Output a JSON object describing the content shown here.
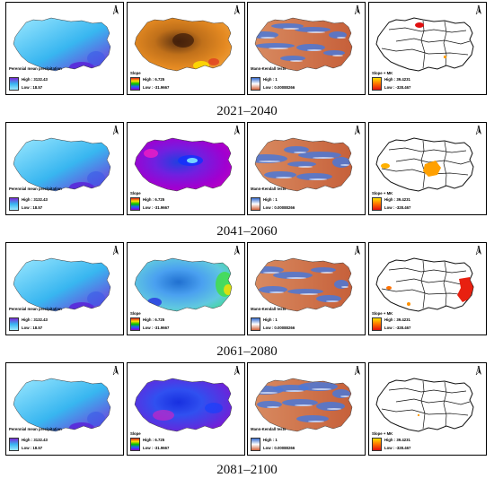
{
  "periods": [
    "2021–2040",
    "2041–2060",
    "2061–2080",
    "2081–2100"
  ],
  "north_label": "N",
  "legends": {
    "precip": {
      "title": "Perennial mean precipitation",
      "high": "High : 3132.43",
      "low": "Low : 18.57"
    },
    "slope": {
      "title": "Slope",
      "high": "High : 6.725",
      "low": "Low : -31.9667"
    },
    "mk": {
      "title": "Mann-Kendall tests",
      "high": "High : 1",
      "low": "Low : 0.00088266"
    },
    "slopemk": {
      "title": "Slope + MK",
      "high": "High : 39.4231",
      "low": "Low : -328.467"
    }
  },
  "colors": {
    "precip_ramp": [
      "#7a2bd6",
      "#38b6f0",
      "#9ce8ff"
    ],
    "slope_ramp": [
      "#e0231f",
      "#ffe000",
      "#00c000",
      "#2060ff",
      "#9000d0"
    ],
    "mk_ramp": [
      "#3a6fd0",
      "#ffffff",
      "#d2643c"
    ],
    "slopemk_ramp": [
      "#ffe000",
      "#ff7000",
      "#e01010"
    ]
  }
}
